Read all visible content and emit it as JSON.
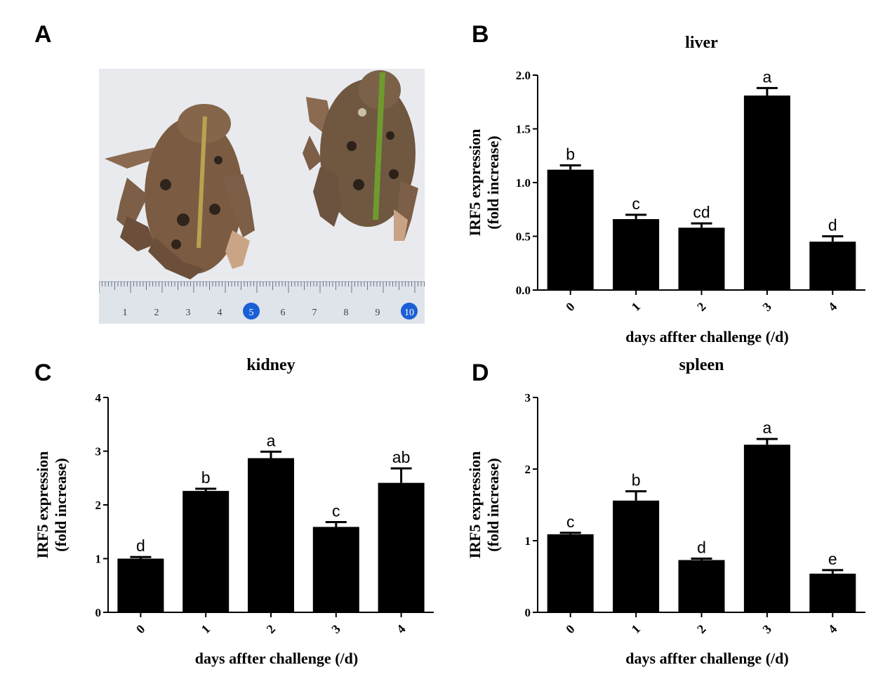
{
  "panels": {
    "A": "A",
    "B": "B",
    "C": "C",
    "D": "D"
  },
  "photo": {
    "ruler_labels": [
      "1",
      "2",
      "3",
      "4",
      "5",
      "6",
      "7",
      "8",
      "9",
      "10"
    ]
  },
  "colors": {
    "bar": "#000000",
    "ruler_badge": "#1a5fd6",
    "photo_bg": "#eef0f3"
  },
  "chart_data": [
    {
      "type": "bar",
      "title": "liver",
      "xlabel": "days affter challenge (/d)",
      "ylabel": [
        "IRF5  expression",
        "(fold increase)"
      ],
      "categories": [
        "0",
        "1",
        "2",
        "3",
        "4"
      ],
      "values": [
        1.12,
        0.66,
        0.58,
        1.81,
        0.45
      ],
      "errors": [
        0.04,
        0.04,
        0.04,
        0.07,
        0.05
      ],
      "significance": [
        "b",
        "c",
        "cd",
        "a",
        "d"
      ],
      "ylim": [
        0,
        2.0
      ],
      "yticks": [
        "0.0",
        "0.5",
        "1.0",
        "1.5",
        "2.0"
      ]
    },
    {
      "type": "bar",
      "title": "kidney",
      "xlabel": "days affter challenge (/d)",
      "ylabel": [
        "IRF5  expression",
        "(fold increase)"
      ],
      "categories": [
        "0",
        "1",
        "2",
        "3",
        "4"
      ],
      "values": [
        1.0,
        2.26,
        2.87,
        1.59,
        2.41
      ],
      "errors": [
        0.03,
        0.04,
        0.12,
        0.09,
        0.27
      ],
      "significance": [
        "d",
        "b",
        "a",
        "c",
        "ab"
      ],
      "ylim": [
        0,
        4
      ],
      "yticks": [
        "0",
        "1",
        "2",
        "3",
        "4"
      ]
    },
    {
      "type": "bar",
      "title": "spleen",
      "xlabel": "days affter challenge (/d)",
      "ylabel": [
        "IRF5  expression",
        "(fold increase)"
      ],
      "categories": [
        "0",
        "1",
        "2",
        "3",
        "4"
      ],
      "values": [
        1.09,
        1.56,
        0.73,
        2.34,
        0.54
      ],
      "errors": [
        0.02,
        0.13,
        0.02,
        0.08,
        0.05
      ],
      "significance": [
        "c",
        "b",
        "d",
        "a",
        "e"
      ],
      "ylim": [
        0,
        3
      ],
      "yticks": [
        "0",
        "1",
        "2",
        "3"
      ]
    }
  ]
}
